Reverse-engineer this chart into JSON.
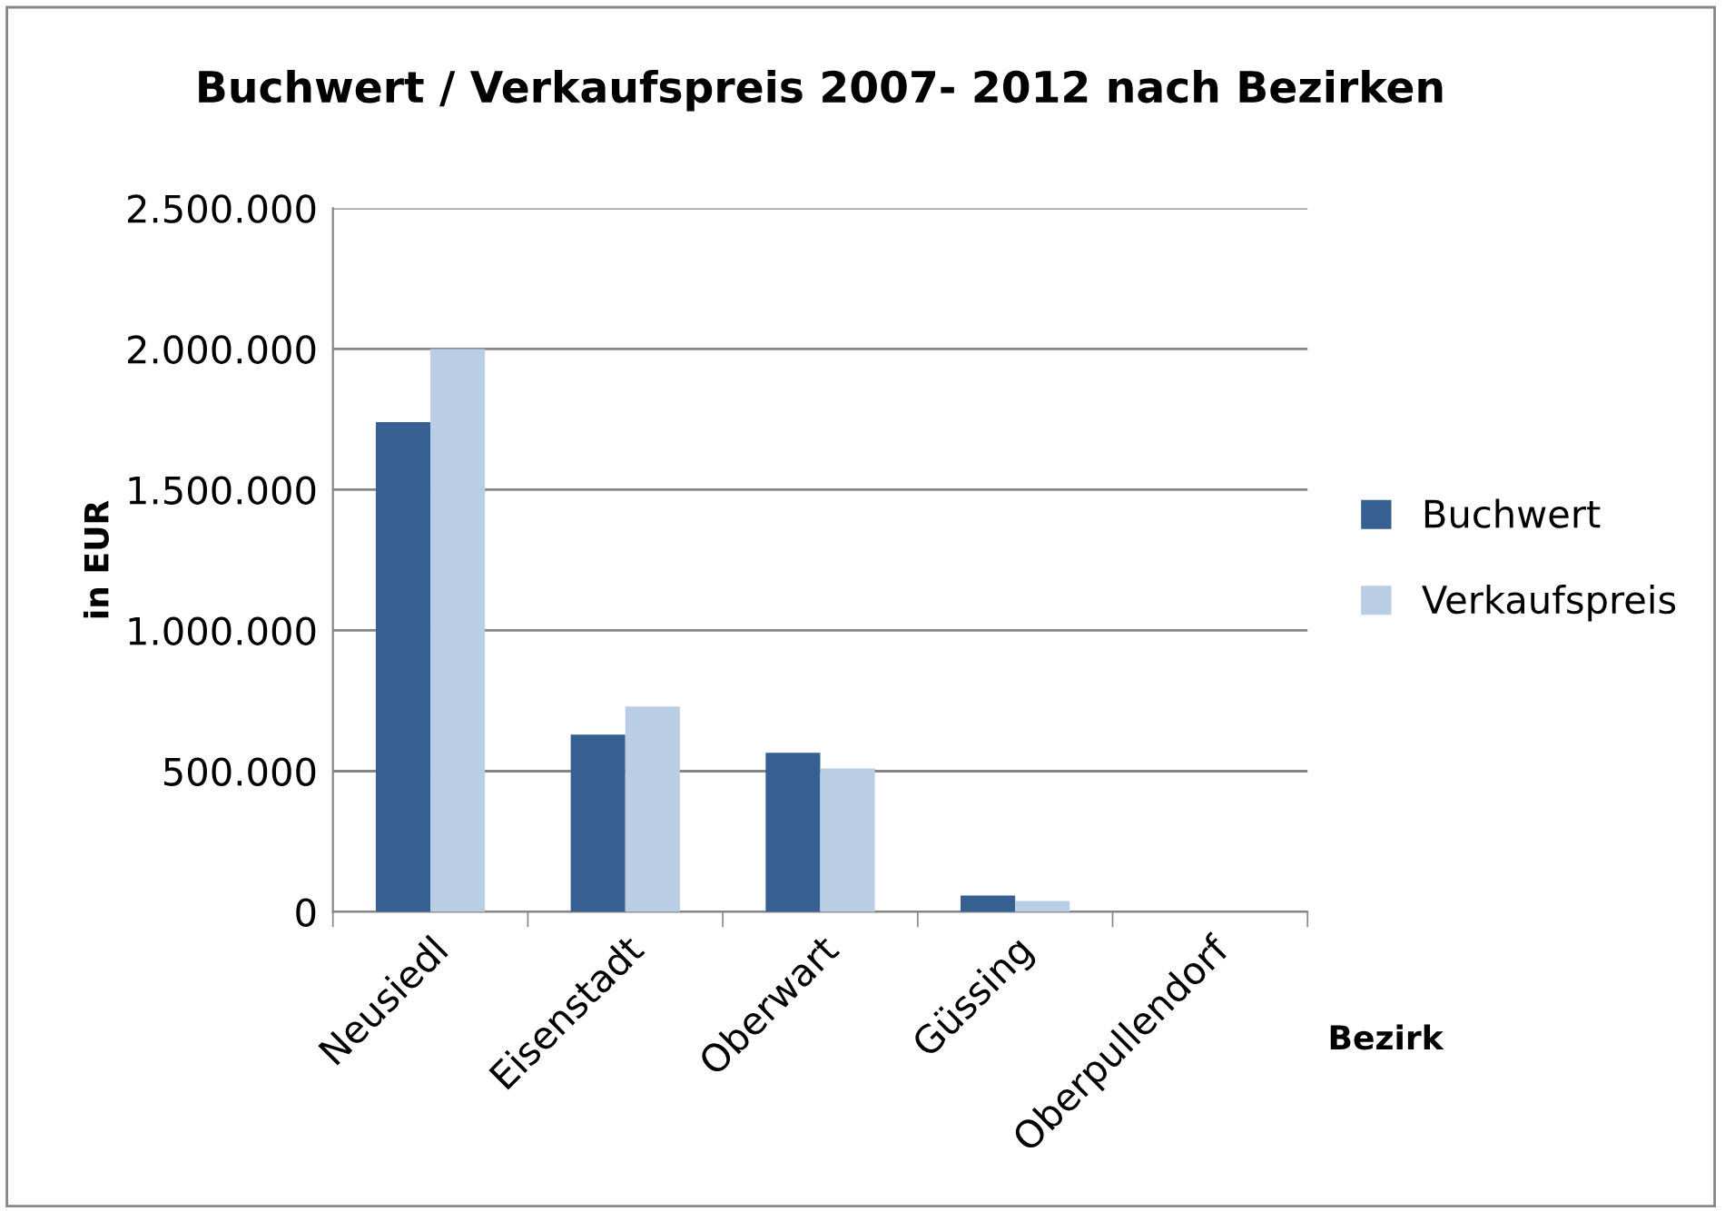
{
  "chart_data": {
    "type": "bar",
    "title": "Buchwert / Verkaufspreis 2007- 2012 nach Bezirken",
    "xlabel": "Bezirk",
    "ylabel": "in EUR",
    "categories": [
      "Neusiedl",
      "Eisenstadt",
      "Oberwart",
      "Güssing",
      "Oberpullendorf"
    ],
    "series": [
      {
        "name": "Buchwert",
        "color": "#376092",
        "values": [
          1740000,
          630000,
          565000,
          58000,
          0
        ]
      },
      {
        "name": "Verkaufspreis",
        "color": "#b9cde5",
        "values": [
          2000000,
          730000,
          510000,
          39000,
          0
        ]
      }
    ],
    "ylim": [
      0,
      2500000
    ],
    "yticks": [
      0,
      {
        "value": 500000,
        "label": "500.000"
      },
      {
        "value": 1000000,
        "label": "1.000.000"
      },
      {
        "value": 1500000,
        "label": "1.500.000"
      },
      {
        "value": 2000000,
        "label": "2.000.000"
      },
      {
        "value": 2500000,
        "label": "2.500.000"
      }
    ],
    "grid": "y",
    "legend": "right"
  }
}
